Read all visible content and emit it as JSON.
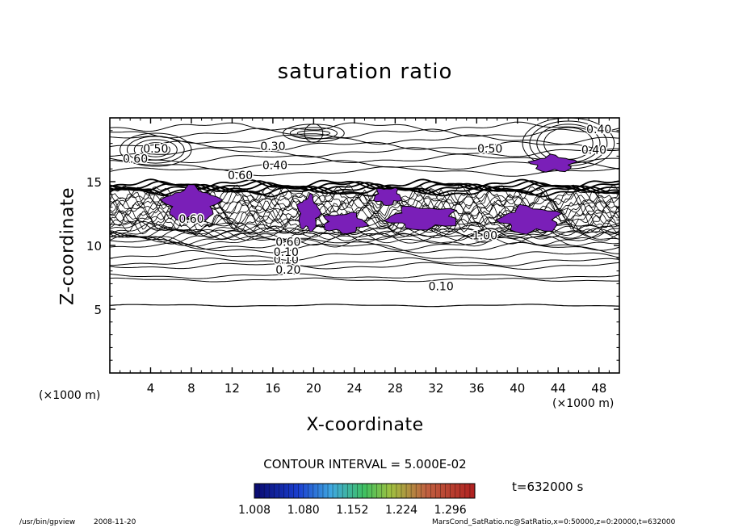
{
  "figure": {
    "title": "saturation ratio",
    "xlabel": "X-coordinate",
    "ylabel": "Z-coordinate",
    "x_unit": "(×1000 m)",
    "x_unit_right": "(×1000 m)",
    "contour_interval": "CONTOUR INTERVAL = 5.000E-02",
    "time": "t=632000 s",
    "program": "/usr/bin/gpview",
    "date": "2008-11-20",
    "meta": "MarsCond_SatRatio.nc@SatRatio,x=0:50000,z=0:20000,t=632000",
    "fill_color": "#7a1fb8",
    "line_color": "#000000"
  },
  "chart_data": {
    "type": "contour",
    "title": "saturation ratio",
    "xlabel": "X-coordinate",
    "ylabel": "Z-coordinate",
    "xlim": [
      0,
      50
    ],
    "ylim": [
      0,
      20
    ],
    "xticks": [
      4,
      8,
      12,
      16,
      20,
      24,
      28,
      32,
      36,
      40,
      44,
      48
    ],
    "yticks": [
      5,
      10,
      15
    ],
    "x_unit": "×1000 m",
    "z_unit": "×1000 m",
    "contour_interval": 0.05,
    "grid": false,
    "contour_lines": [
      {
        "label": "0.10",
        "value": 0.1,
        "z": 6.8,
        "label_x": 32.5
      },
      {
        "label": "0.20",
        "value": 0.2,
        "z": 8.1,
        "label_x": 17.5
      },
      {
        "label": "0.10",
        "value": 0.1,
        "z": 8.9,
        "label_x": 17.3
      },
      {
        "label": "0.10",
        "value": 0.1,
        "z": 9.5,
        "label_x": 17.3
      },
      {
        "label": "0.60",
        "value": 0.6,
        "z": 10.3,
        "label_x": 17.5
      },
      {
        "label": "0.60",
        "value": 0.6,
        "z": 12.1,
        "label_x": 8.0
      },
      {
        "label": "1.00",
        "value": 1.0,
        "z": 10.8,
        "label_x": 36.8
      },
      {
        "label": "0.60",
        "value": 0.6,
        "z": 15.5,
        "label_x": 12.8
      },
      {
        "label": "0.40",
        "value": 0.4,
        "z": 16.3,
        "label_x": 16.2
      },
      {
        "label": "0.30",
        "value": 0.3,
        "z": 17.8,
        "label_x": 16.0
      },
      {
        "label": "0.50",
        "value": 0.5,
        "z": 17.6,
        "label_x": 4.5
      },
      {
        "label": "0.60",
        "value": 0.6,
        "z": 16.8,
        "label_x": 2.5
      },
      {
        "label": "0.50",
        "value": 0.5,
        "z": 17.6,
        "label_x": 37.3
      },
      {
        "label": "0.40",
        "value": 0.4,
        "z": 19.1,
        "label_x": 48.0
      },
      {
        "label": "0.40",
        "value": 0.4,
        "z": 17.5,
        "label_x": 47.5
      }
    ],
    "supersaturated_regions": [
      {
        "x": [
          5.5,
          10.5
        ],
        "z": [
          12.0,
          14.5
        ]
      },
      {
        "x": [
          18.5,
          20.5
        ],
        "z": [
          11.2,
          13.8
        ]
      },
      {
        "x": [
          21.0,
          25.0
        ],
        "z": [
          11.0,
          12.5
        ]
      },
      {
        "x": [
          26.0,
          28.5
        ],
        "z": [
          13.2,
          14.5
        ]
      },
      {
        "x": [
          27.5,
          34.0
        ],
        "z": [
          11.3,
          13.0
        ]
      },
      {
        "x": [
          38.5,
          44.0
        ],
        "z": [
          11.0,
          13.0
        ]
      },
      {
        "x": [
          41.5,
          45.5
        ],
        "z": [
          15.8,
          17.0
        ]
      }
    ],
    "colorbar": {
      "ticks": [
        "1.008",
        "1.080",
        "1.152",
        "1.224",
        "1.296"
      ],
      "range": [
        1.008,
        1.332
      ],
      "colormap": "blue-green-red"
    }
  }
}
